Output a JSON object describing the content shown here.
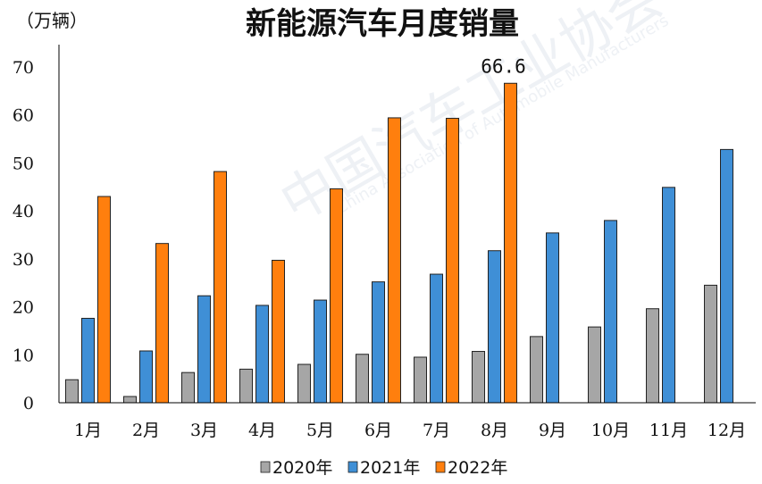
{
  "chart_data": {
    "type": "bar",
    "title": "新能源汽车月度销量",
    "unit_label": "（万辆）",
    "categories": [
      "1月",
      "2月",
      "3月",
      "4月",
      "5月",
      "6月",
      "7月",
      "8月",
      "9月",
      "10月",
      "11月",
      "12月"
    ],
    "series": [
      {
        "name": "2020年",
        "color": "#a6a6a6",
        "values": [
          4.8,
          1.3,
          6.3,
          7.0,
          8.0,
          10.1,
          9.5,
          10.7,
          13.8,
          15.8,
          19.6,
          24.5
        ]
      },
      {
        "name": "2021年",
        "color": "#3f8fd6",
        "values": [
          17.6,
          10.8,
          22.3,
          20.3,
          21.4,
          25.2,
          26.8,
          31.7,
          35.4,
          38.0,
          44.9,
          52.8
        ]
      },
      {
        "name": "2022年",
        "color": "#ff7f0e",
        "values": [
          43.0,
          33.2,
          48.2,
          29.7,
          44.6,
          59.4,
          59.3,
          66.6,
          null,
          null,
          null,
          null
        ]
      }
    ],
    "ylim": [
      0,
      70
    ],
    "yticks": [
      0,
      10,
      20,
      30,
      40,
      50,
      60,
      70
    ],
    "annotations": [
      {
        "series": "2022年",
        "category": "8月",
        "text": "66.6"
      }
    ],
    "legend_position": "bottom",
    "grid": false
  }
}
